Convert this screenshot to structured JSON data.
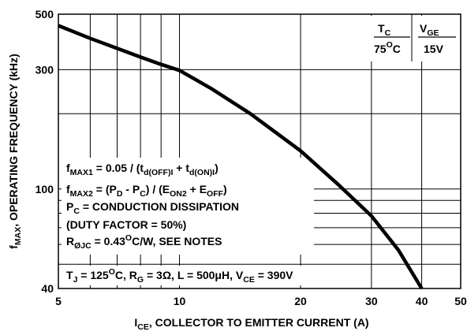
{
  "chart_data": {
    "type": "line",
    "x_scale": "log",
    "y_scale": "log",
    "xlim": [
      5,
      50
    ],
    "ylim": [
      40,
      500
    ],
    "x_ticks": [
      5,
      10,
      20,
      30,
      40,
      50
    ],
    "x_tick_labels": [
      "5",
      "10",
      "20",
      "30",
      "40",
      "50"
    ],
    "y_ticks": [
      40,
      100,
      300,
      500
    ],
    "y_tick_labels": [
      "40",
      "100",
      "300",
      "500"
    ],
    "grid": true,
    "xlabel": {
      "main": "I",
      "sub": "CE",
      "rest": ", COLLECTOR TO EMITTER CURRENT (A)"
    },
    "ylabel": {
      "main": "f",
      "sub": "MAX",
      "rest": ", OPERATING FREQUENCY (kHz)"
    },
    "series": [
      {
        "color": "#000000",
        "x": [
          5,
          6,
          7,
          8,
          9,
          10,
          12,
          15,
          20,
          25,
          30,
          35,
          40
        ],
        "y": [
          450,
          400,
          365,
          337,
          315,
          298,
          252,
          200,
          142,
          103,
          78,
          57,
          40
        ]
      }
    ],
    "legend_header": {
      "tc_main": "T",
      "tc_sub": "C",
      "tc_value": "75",
      "tc_unit": "C",
      "vge_main": "V",
      "vge_sub": "GE",
      "vge_value": "15V"
    },
    "annotations": {
      "fmax1": {
        "a": "f",
        "a_sub": "MAX1",
        "b": " = 0.05 / (t",
        "b_sub": "d(OFF)I",
        "c": " + t",
        "c_sub": "d(ON)I",
        "d": ")"
      },
      "fmax2": {
        "a": "f",
        "a_sub": "MAX2",
        "b": " = (P",
        "b_sub": "D",
        "c": " - P",
        "c_sub": "C",
        "d": ") / (E",
        "d_sub": "ON2",
        "e": " + E",
        "e_sub": "OFF",
        "f": ")"
      },
      "pc": {
        "a": "P",
        "a_sub": "C",
        "b": " = CONDUCTION DISSIPATION"
      },
      "duty": "(DUTY FACTOR = 50%)",
      "rth": {
        "a": "R",
        "a_sub": "ØJC",
        "b": " = 0.43",
        "b_sup": "O",
        "c": "C/W, SEE NOTES"
      },
      "conditions": {
        "tj": "T",
        "tj_sub": "J",
        "tj_val": " = 125",
        "tj_sup": "O",
        "tj_unit": "C, R",
        "rg_sub": "G",
        "rg_val": " = 3Ω, L = 500μH, V",
        "vce_sub": "CE",
        "vce_val": " = 390V"
      }
    }
  }
}
